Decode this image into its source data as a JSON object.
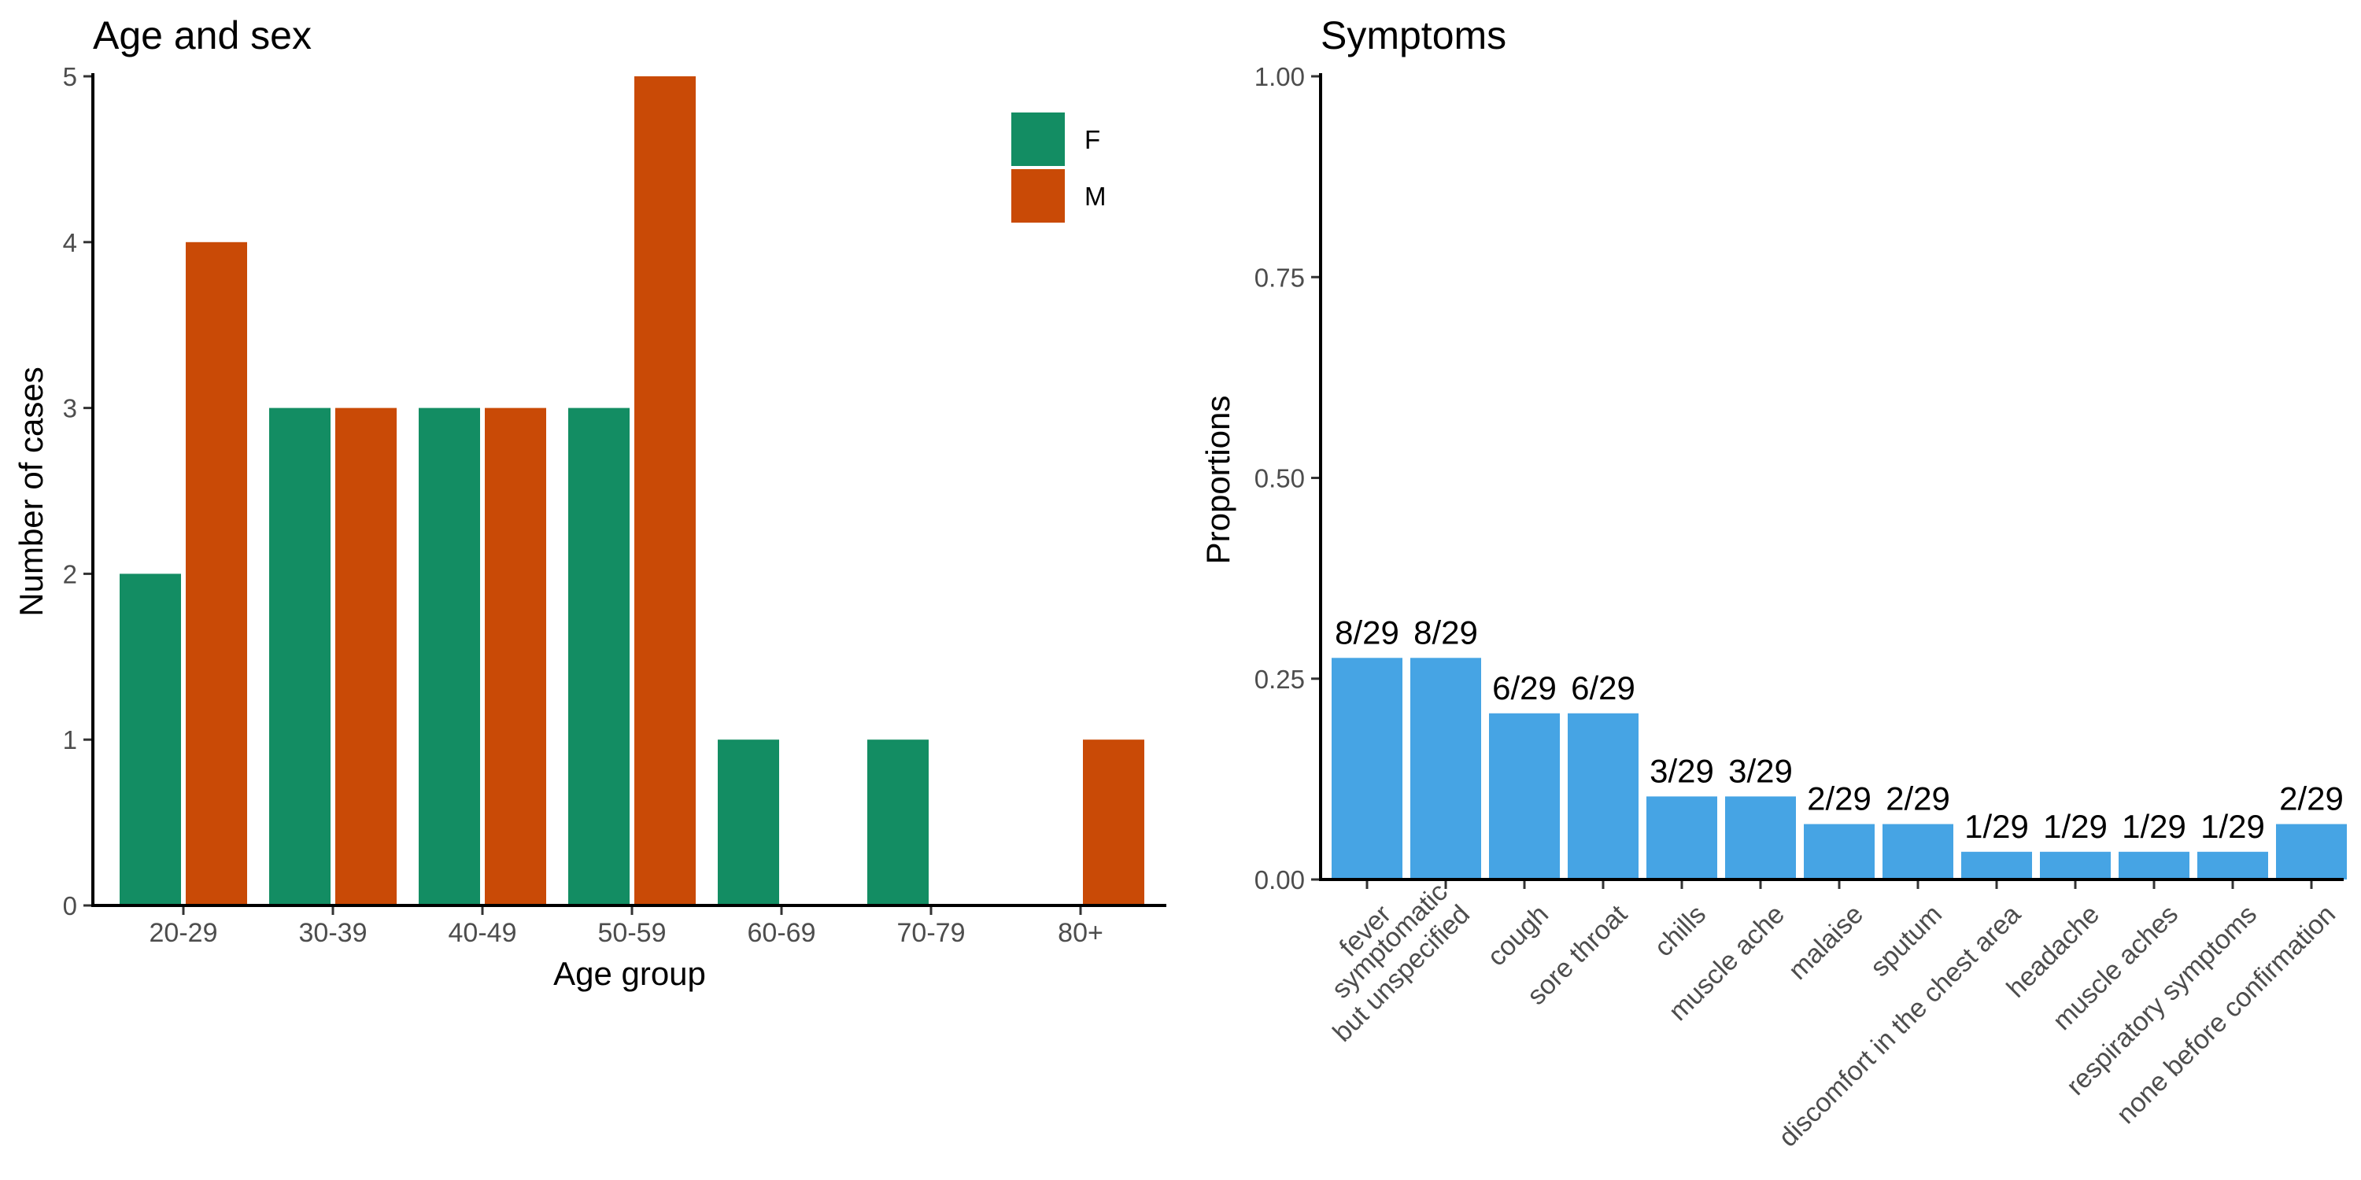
{
  "chart_data": [
    {
      "type": "bar",
      "title": "Age and sex",
      "xlabel": "Age group",
      "ylabel": "Number of cases",
      "categories": [
        "20-29",
        "30-39",
        "40-49",
        "50-59",
        "60-69",
        "70-79",
        "80+"
      ],
      "series": [
        {
          "name": "F",
          "color": "#138d63",
          "values": [
            2,
            3,
            3,
            3,
            1,
            1,
            0
          ]
        },
        {
          "name": "M",
          "color": "#c94a06",
          "values": [
            4,
            3,
            3,
            5,
            0,
            0,
            1
          ]
        }
      ],
      "ylim": [
        0,
        5
      ],
      "yticks": [
        0,
        1,
        2,
        3,
        4,
        5
      ],
      "legend_position": "top-right",
      "grid": false
    },
    {
      "type": "bar",
      "title": "Symptoms",
      "xlabel": "",
      "ylabel": "Proportions",
      "color": "#46a4e4",
      "categories": [
        "fever",
        "symptomatic but unspecified",
        "cough",
        "sore throat",
        "chills",
        "muscle ache",
        "malaise",
        "sputum",
        "discomfort in the chest area",
        "headache",
        "muscle aches",
        "respiratory symptoms",
        "none before confirmation"
      ],
      "category_lines": [
        [
          "fever"
        ],
        [
          "symptomatic",
          "but unspecified"
        ],
        [
          "cough"
        ],
        [
          "sore throat"
        ],
        [
          "chills"
        ],
        [
          "muscle ache"
        ],
        [
          "malaise"
        ],
        [
          "sputum"
        ],
        [
          "discomfort in the chest area"
        ],
        [
          "headache"
        ],
        [
          "muscle aches"
        ],
        [
          "respiratory symptoms"
        ],
        [
          "none before confirmation"
        ]
      ],
      "values": [
        0.2759,
        0.2759,
        0.2069,
        0.2069,
        0.1034,
        0.1034,
        0.069,
        0.069,
        0.0345,
        0.0345,
        0.0345,
        0.0345,
        0.069
      ],
      "data_labels": [
        "8/29",
        "8/29",
        "6/29",
        "6/29",
        "3/29",
        "3/29",
        "2/29",
        "2/29",
        "1/29",
        "1/29",
        "1/29",
        "1/29",
        "2/29"
      ],
      "ylim": [
        0,
        1
      ],
      "yticks": [
        0,
        0.25,
        0.5,
        0.75,
        1
      ],
      "ytick_labels": [
        "0.00",
        "0.25",
        "0.50",
        "0.75",
        "1.00"
      ],
      "grid": false
    }
  ]
}
